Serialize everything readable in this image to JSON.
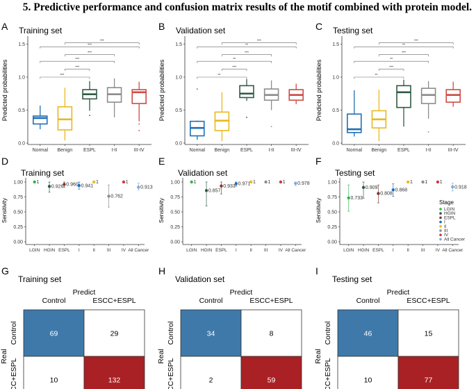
{
  "figure_title": "5. Predictive performance and confusion matrix results of the motif combined with protein model.",
  "chart_data": [
    {
      "panel": "A",
      "type": "box",
      "title": "Training set",
      "xlabel": "",
      "ylabel": "Predicted probabilities",
      "ylim": [
        0,
        1.6
      ],
      "yticks": [
        "0.0",
        "0.5",
        "1.0",
        "1.5"
      ],
      "categories": [
        "Normal",
        "Benign",
        "ESPL",
        "I-II",
        "III-IV"
      ],
      "colors": [
        "#1f6fb5",
        "#e8b920",
        "#2e5a43",
        "#8c8c8c",
        "#cd4a45"
      ],
      "boxes": [
        {
          "min": 0.21,
          "q1": 0.29,
          "median": 0.38,
          "q3": 0.41,
          "max": 0.57,
          "outliers": []
        },
        {
          "min": 0.04,
          "q1": 0.2,
          "median": 0.36,
          "q3": 0.55,
          "max": 0.84,
          "outliers": []
        },
        {
          "min": 0.49,
          "q1": 0.67,
          "median": 0.74,
          "q3": 0.81,
          "max": 0.94,
          "outliers": [
            0.42
          ]
        },
        {
          "min": 0.39,
          "q1": 0.62,
          "median": 0.74,
          "q3": 0.84,
          "max": 0.98,
          "outliers": []
        },
        {
          "min": 0.33,
          "q1": 0.6,
          "median": 0.77,
          "q3": 0.81,
          "max": 0.93,
          "outliers": [
            0.29,
            0.19
          ]
        }
      ],
      "comparisons": [
        {
          "from": "Benign",
          "to": "III-IV",
          "label": "***"
        },
        {
          "from": "Normal",
          "to": "III-IV",
          "label": "***"
        },
        {
          "from": "Benign",
          "to": "I-II",
          "label": "***"
        },
        {
          "from": "Normal",
          "to": "I-II",
          "label": "***"
        },
        {
          "from": "Benign",
          "to": "ESPL",
          "label": "***"
        },
        {
          "from": "Normal",
          "to": "ESPL",
          "label": "***"
        }
      ]
    },
    {
      "panel": "B",
      "type": "box",
      "title": "Validation set",
      "xlabel": "",
      "ylabel": "Predicted probabilities",
      "ylim": [
        0,
        1.6
      ],
      "yticks": [
        "0.0",
        "0.5",
        "1.0",
        "1.5"
      ],
      "categories": [
        "Normal",
        "Benign",
        "ESPL",
        "I-II",
        "III-IV"
      ],
      "colors": [
        "#1f6fb5",
        "#e8b920",
        "#2e5a43",
        "#8c8c8c",
        "#cd4a45"
      ],
      "boxes": [
        {
          "min": 0.05,
          "q1": 0.11,
          "median": 0.23,
          "q3": 0.33,
          "max": 0.34,
          "outliers": [
            0.82
          ]
        },
        {
          "min": 0.03,
          "q1": 0.19,
          "median": 0.34,
          "q3": 0.47,
          "max": 0.77,
          "outliers": []
        },
        {
          "min": 0.64,
          "q1": 0.69,
          "median": 0.75,
          "q3": 0.87,
          "max": 0.97,
          "outliers": [
            0.39
          ]
        },
        {
          "min": 0.5,
          "q1": 0.65,
          "median": 0.73,
          "q3": 0.82,
          "max": 0.95,
          "outliers": [
            0.25
          ]
        },
        {
          "min": 0.59,
          "q1": 0.65,
          "median": 0.73,
          "q3": 0.81,
          "max": 0.9,
          "outliers": []
        }
      ],
      "comparisons": [
        {
          "from": "Benign",
          "to": "III-IV",
          "label": "***"
        },
        {
          "from": "Normal",
          "to": "III-IV",
          "label": "**"
        },
        {
          "from": "Benign",
          "to": "I-II",
          "label": "***"
        },
        {
          "from": "Normal",
          "to": "I-II",
          "label": "**"
        },
        {
          "from": "Benign",
          "to": "ESPL",
          "label": "***"
        },
        {
          "from": "Normal",
          "to": "ESPL",
          "label": "**"
        }
      ]
    },
    {
      "panel": "C",
      "type": "box",
      "title": "Testing set",
      "xlabel": "",
      "ylabel": "Predicted probabilities",
      "ylim": [
        0,
        1.6
      ],
      "yticks": [
        "0.0",
        "0.5",
        "1.0",
        "1.5"
      ],
      "categories": [
        "Normal",
        "Benign",
        "ESPL",
        "I-II",
        "III-IV"
      ],
      "colors": [
        "#1f6fb5",
        "#e8b920",
        "#2e5a43",
        "#8c8c8c",
        "#cd4a45"
      ],
      "boxes": [
        {
          "min": 0.1,
          "q1": 0.16,
          "median": 0.21,
          "q3": 0.44,
          "max": 0.8,
          "outliers": []
        },
        {
          "min": 0.03,
          "q1": 0.23,
          "median": 0.36,
          "q3": 0.49,
          "max": 0.81,
          "outliers": []
        },
        {
          "min": 0.25,
          "q1": 0.54,
          "median": 0.77,
          "q3": 0.87,
          "max": 0.96,
          "outliers": []
        },
        {
          "min": 0.37,
          "q1": 0.6,
          "median": 0.73,
          "q3": 0.83,
          "max": 0.94,
          "outliers": [
            0.17
          ]
        },
        {
          "min": 0.55,
          "q1": 0.62,
          "median": 0.73,
          "q3": 0.81,
          "max": 0.93,
          "outliers": []
        }
      ],
      "comparisons": [
        {
          "from": "Benign",
          "to": "III-IV",
          "label": "***"
        },
        {
          "from": "Normal",
          "to": "III-IV",
          "label": "**"
        },
        {
          "from": "Benign",
          "to": "I-II",
          "label": "***"
        },
        {
          "from": "Normal",
          "to": "I-II",
          "label": "**"
        },
        {
          "from": "Benign",
          "to": "ESPL",
          "label": "***"
        },
        {
          "from": "Normal",
          "to": "ESPL",
          "label": "**"
        }
      ]
    },
    {
      "panel": "D",
      "type": "scatter",
      "title": "Training set",
      "xlabel": "",
      "ylabel": "Sensitivity",
      "ylim": [
        0,
        1.0
      ],
      "yticks": [
        "0.00",
        "0.25",
        "0.50",
        "0.75",
        "1.00"
      ],
      "categories": [
        "LGIN",
        "HGIN",
        "ESPL",
        "I",
        "II",
        "III",
        "IV",
        "All Cancer"
      ],
      "colors": [
        "#2db84b",
        "#2e5a43",
        "#7a3a33",
        "#1f6fb5",
        "#e8b920",
        "#8c8c8c",
        "#cd3a3a",
        "#7fa8d8"
      ],
      "points": [
        {
          "value": 1,
          "label": "1",
          "lo": 1,
          "hi": 1
        },
        {
          "value": 0.926,
          "label": "0.926",
          "lo": 0.83,
          "hi": 1.0
        },
        {
          "value": 0.96,
          "label": "0.960",
          "lo": 0.91,
          "hi": 1.0
        },
        {
          "value": 0.941,
          "label": "0.941",
          "lo": 0.88,
          "hi": 1.0
        },
        {
          "value": 1,
          "label": "1",
          "lo": 1,
          "hi": 1
        },
        {
          "value": 0.762,
          "label": "0.762",
          "lo": 0.58,
          "hi": 0.95
        },
        {
          "value": 1,
          "label": "1",
          "lo": 1,
          "hi": 1
        },
        {
          "value": 0.913,
          "label": "0.913",
          "lo": 0.87,
          "hi": 0.98
        }
      ]
    },
    {
      "panel": "E",
      "type": "scatter",
      "title": "Validation set",
      "xlabel": "",
      "ylabel": "Sensitivity",
      "ylim": [
        0,
        1.0
      ],
      "yticks": [
        "0.00",
        "0.25",
        "0.50",
        "0.75",
        "1.00"
      ],
      "categories": [
        "LGIN",
        "HGIN",
        "ESPL",
        "I",
        "II",
        "III",
        "IV",
        "All Cancer"
      ],
      "colors": [
        "#2db84b",
        "#2e5a43",
        "#7a3a33",
        "#1f6fb5",
        "#e8b920",
        "#8c8c8c",
        "#cd3a3a",
        "#7fa8d8"
      ],
      "points": [
        {
          "value": 1,
          "label": "1",
          "lo": 1,
          "hi": 1
        },
        {
          "value": 0.857,
          "label": "0.857",
          "lo": 0.6,
          "hi": 1.0
        },
        {
          "value": 0.933,
          "label": "0.933",
          "lo": 0.8,
          "hi": 1.0
        },
        {
          "value": 0.971,
          "label": "0.971",
          "lo": 0.93,
          "hi": 1.0
        },
        {
          "value": 1,
          "label": "1",
          "lo": 1,
          "hi": 1
        },
        {
          "value": 1,
          "label": "1",
          "lo": 1,
          "hi": 1
        },
        {
          "value": 1,
          "label": "1",
          "lo": 1,
          "hi": 1
        },
        {
          "value": 0.978,
          "label": "0.978",
          "lo": 0.94,
          "hi": 1.0
        }
      ]
    },
    {
      "panel": "F",
      "type": "scatter",
      "title": "Testing set",
      "xlabel": "",
      "ylabel": "Sensitivity",
      "ylim": [
        0,
        1.0
      ],
      "yticks": [
        "0.00",
        "0.25",
        "0.50",
        "0.75",
        "1.00"
      ],
      "categories": [
        "LGIN",
        "HGIN",
        "ESPL",
        "I",
        "II",
        "III",
        "IV",
        "All Cancer"
      ],
      "colors": [
        "#2db84b",
        "#2e5a43",
        "#7a3a33",
        "#1f6fb5",
        "#e8b920",
        "#8c8c8c",
        "#cd3a3a",
        "#7fa8d8"
      ],
      "points": [
        {
          "value": 0.733,
          "label": "0.733",
          "lo": 0.51,
          "hi": 0.95
        },
        {
          "value": 0.909,
          "label": "0.909",
          "lo": 0.73,
          "hi": 1.0
        },
        {
          "value": 0.808,
          "label": "0.808",
          "lo": 0.65,
          "hi": 0.95
        },
        {
          "value": 0.868,
          "label": "0.868",
          "lo": 0.76,
          "hi": 0.97
        },
        {
          "value": 1,
          "label": "1",
          "lo": 1,
          "hi": 1
        },
        {
          "value": 1,
          "label": "1",
          "lo": 1,
          "hi": 1
        },
        {
          "value": 1,
          "label": "1",
          "lo": 1,
          "hi": 1
        },
        {
          "value": 0.918,
          "label": "0.918",
          "lo": 0.85,
          "hi": 0.98
        }
      ],
      "legend": {
        "title": "Stage",
        "position": "right",
        "entries": [
          "LGIN",
          "HGIN",
          "ESPL",
          "I",
          "II",
          "III",
          "IV",
          "All Cancer"
        ]
      }
    },
    {
      "panel": "G",
      "type": "heatmap",
      "title": "Training set",
      "col_header": "Predict",
      "row_header": "Real",
      "cols": [
        "Control",
        "ESCC+ESPL"
      ],
      "rows": [
        "Control",
        "ESCC+ESPL"
      ],
      "values": [
        [
          69,
          29
        ],
        [
          10,
          132
        ]
      ],
      "cell_colors": [
        [
          "#3e79aa",
          "#ffffff"
        ],
        [
          "#ffffff",
          "#a92124"
        ]
      ],
      "text_colors": [
        [
          "#ffffff",
          "#000000"
        ],
        [
          "#000000",
          "#ffffff"
        ]
      ]
    },
    {
      "panel": "H",
      "type": "heatmap",
      "title": "Validation set",
      "col_header": "Predict",
      "row_header": "Real",
      "cols": [
        "Control",
        "ESCC+ESPL"
      ],
      "rows": [
        "Control",
        "ESCC+ESPL"
      ],
      "values": [
        [
          34,
          8
        ],
        [
          2,
          59
        ]
      ],
      "cell_colors": [
        [
          "#3e79aa",
          "#ffffff"
        ],
        [
          "#ffffff",
          "#a92124"
        ]
      ],
      "text_colors": [
        [
          "#ffffff",
          "#000000"
        ],
        [
          "#000000",
          "#ffffff"
        ]
      ]
    },
    {
      "panel": "I",
      "type": "heatmap",
      "title": "Testing set",
      "col_header": "Predict",
      "row_header": "Real",
      "cols": [
        "Control",
        "ESCC+ESPL"
      ],
      "rows": [
        "Control",
        "ESCC+ESPL"
      ],
      "values": [
        [
          46,
          15
        ],
        [
          10,
          77
        ]
      ],
      "cell_colors": [
        [
          "#3e79aa",
          "#ffffff"
        ],
        [
          "#ffffff",
          "#a92124"
        ]
      ],
      "text_colors": [
        [
          "#ffffff",
          "#000000"
        ],
        [
          "#000000",
          "#ffffff"
        ]
      ]
    }
  ]
}
